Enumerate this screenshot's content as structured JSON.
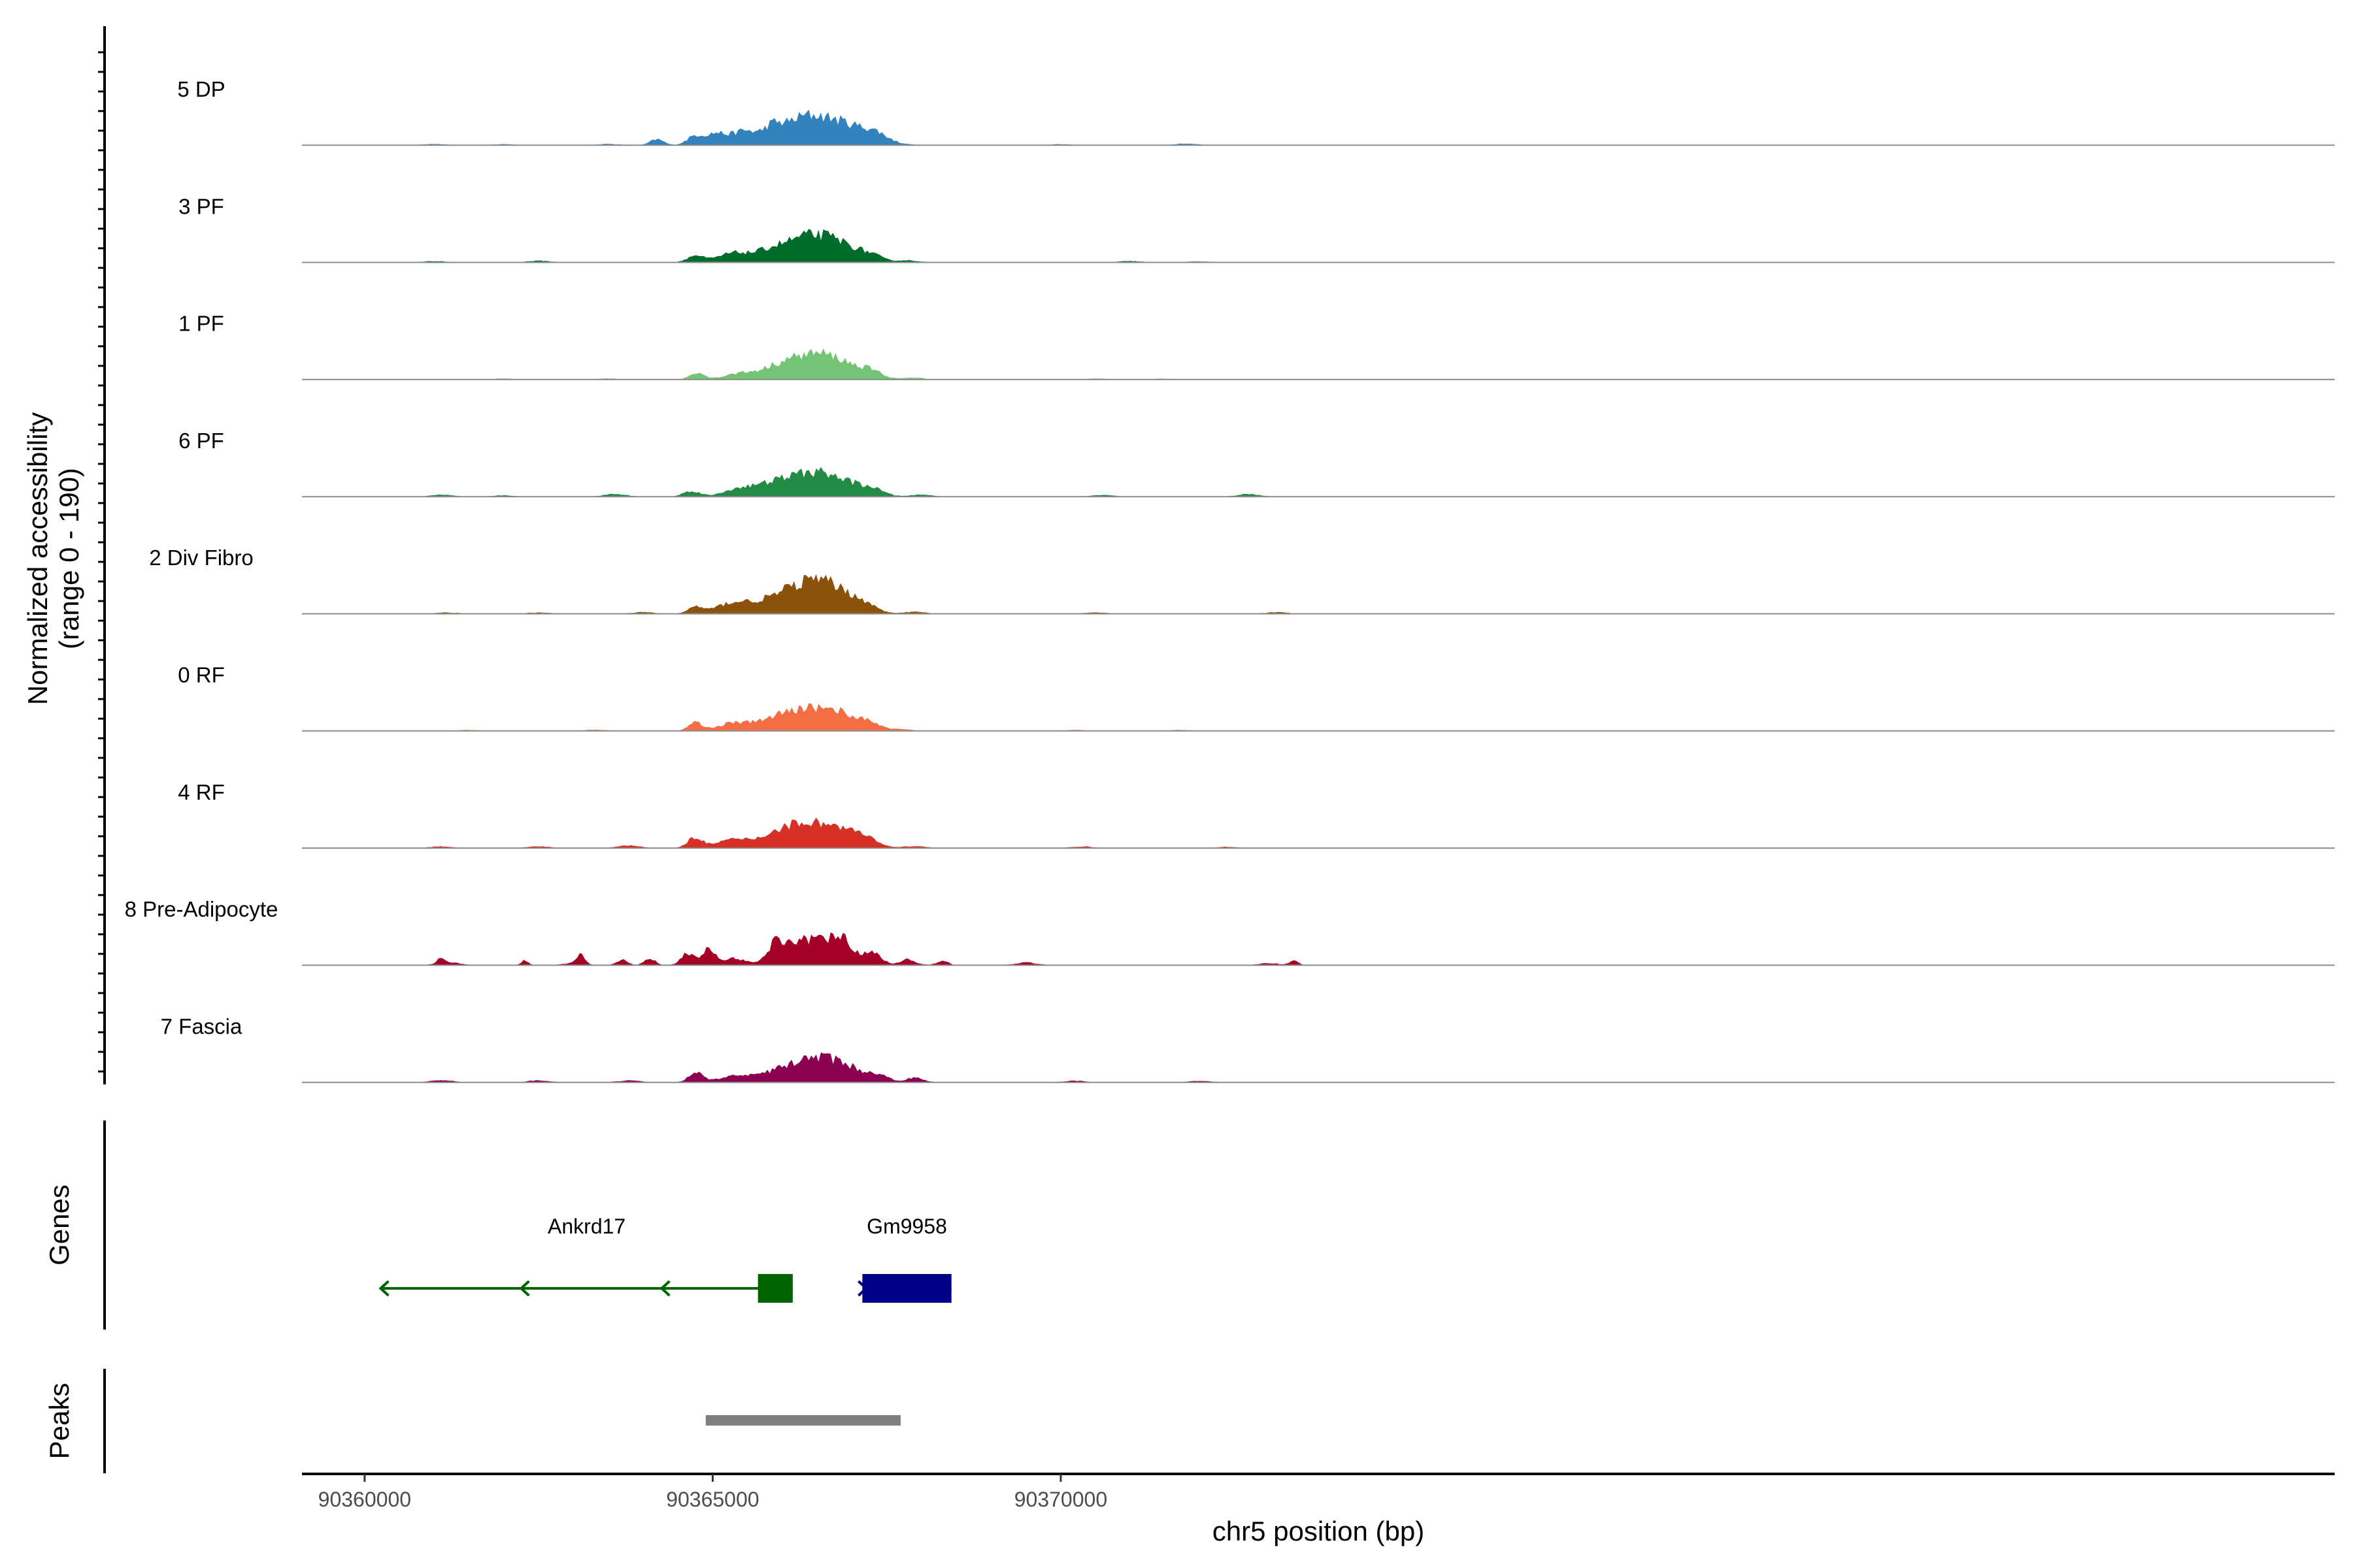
{
  "chart_data": {
    "type": "area",
    "title": "",
    "ylabel_line1": "Normalized accessibility",
    "ylabel_line2": "(range 0 - 190)",
    "y_range": [
      0,
      190
    ],
    "xlabel": "chr5 position (bp)",
    "x_range": [
      90359100,
      90388300
    ],
    "x_ticks": [
      {
        "value": 90360000,
        "label": "90360000"
      },
      {
        "value": 90365000,
        "label": "90365000"
      },
      {
        "value": 90370000,
        "label": "90370000"
      }
    ],
    "genes_label": "Genes",
    "peaks_label": "Peaks",
    "series": [
      {
        "name": "5 DP",
        "color": "#3182BD",
        "baseline": [
          [
            90361000,
            2
          ],
          [
            90362000,
            1.5
          ],
          [
            90363500,
            2
          ],
          [
            90370000,
            1.5
          ],
          [
            90371800,
            2.5
          ]
        ],
        "peaks": [
          [
            90364200,
            90,
            10
          ],
          [
            90364750,
            140,
            12
          ],
          [
            90365050,
            170,
            14
          ],
          [
            90365450,
            210,
            18
          ],
          [
            90365850,
            160,
            12
          ],
          [
            90366250,
            330,
            32
          ],
          [
            90366850,
            320,
            40
          ],
          [
            90367350,
            80,
            16
          ]
        ]
      },
      {
        "name": "3 PF",
        "color": "#006D2C",
        "baseline": [
          [
            90361000,
            2
          ],
          [
            90362500,
            2.5
          ],
          [
            90367800,
            3
          ],
          [
            90371000,
            2
          ],
          [
            90372000,
            1.5
          ]
        ],
        "peaks": [
          [
            90364750,
            100,
            12
          ],
          [
            90365300,
            140,
            22
          ],
          [
            90365800,
            110,
            22
          ],
          [
            90366250,
            290,
            32
          ],
          [
            90366500,
            90,
            24
          ],
          [
            90366850,
            250,
            30
          ],
          [
            90367300,
            60,
            14
          ]
        ]
      },
      {
        "name": "1 PF",
        "color": "#74C476",
        "baseline": [
          [
            90362000,
            1.5
          ],
          [
            90363500,
            1.5
          ],
          [
            90367900,
            2.5
          ],
          [
            90370500,
            1.5
          ],
          [
            90371500,
            1.5
          ]
        ],
        "peaks": [
          [
            90364780,
            100,
            11
          ],
          [
            90365400,
            90,
            22
          ],
          [
            90365900,
            80,
            22
          ],
          [
            90366250,
            260,
            34
          ],
          [
            90366500,
            80,
            24
          ],
          [
            90366850,
            230,
            32
          ],
          [
            90367300,
            70,
            14
          ]
        ]
      },
      {
        "name": "6 PF",
        "color": "#238B45",
        "baseline": [
          [
            90361100,
            3
          ],
          [
            90362000,
            2
          ],
          [
            90363600,
            4
          ],
          [
            90368000,
            3
          ],
          [
            90370600,
            2.5
          ],
          [
            90372700,
            4
          ]
        ],
        "peaks": [
          [
            90364700,
            90,
            12
          ],
          [
            90365400,
            130,
            22
          ],
          [
            90365850,
            110,
            22
          ],
          [
            90366250,
            250,
            32
          ],
          [
            90366500,
            80,
            24
          ],
          [
            90366850,
            210,
            32
          ],
          [
            90367300,
            70,
            16
          ]
        ]
      },
      {
        "name": "2 Div Fibro",
        "color": "#8C510A",
        "baseline": [
          [
            90361200,
            2
          ],
          [
            90362500,
            2
          ],
          [
            90364000,
            2.5
          ],
          [
            90367900,
            3
          ],
          [
            90370500,
            2
          ],
          [
            90373100,
            2.5
          ]
        ],
        "peaks": [
          [
            90364750,
            100,
            11
          ],
          [
            90365300,
            170,
            24
          ],
          [
            90365800,
            130,
            24
          ],
          [
            90366250,
            330,
            30
          ],
          [
            90366500,
            110,
            26
          ],
          [
            90366800,
            300,
            30
          ],
          [
            90367200,
            70,
            16
          ]
        ]
      },
      {
        "name": "0 RF",
        "color": "#F46D43",
        "baseline": [
          [
            90361500,
            1.5
          ],
          [
            90363300,
            2
          ],
          [
            90367700,
            2.5
          ],
          [
            90370200,
            1.5
          ],
          [
            90371700,
            1.5
          ]
        ],
        "peaks": [
          [
            90364750,
            130,
            10
          ],
          [
            90365300,
            120,
            22
          ],
          [
            90365800,
            110,
            22
          ],
          [
            90366250,
            270,
            30
          ],
          [
            90366500,
            60,
            22
          ],
          [
            90366850,
            250,
            28
          ],
          [
            90367300,
            70,
            14
          ]
        ]
      },
      {
        "name": "4 RF",
        "color": "#D73027",
        "baseline": [
          [
            90361100,
            2.5
          ],
          [
            90362500,
            3
          ],
          [
            90363800,
            4
          ],
          [
            90367900,
            3
          ],
          [
            90370300,
            2.5
          ],
          [
            90372400,
            2
          ]
        ],
        "peaks": [
          [
            90364750,
            170,
            11
          ],
          [
            90365300,
            130,
            22
          ],
          [
            90365800,
            90,
            22
          ],
          [
            90366200,
            300,
            30
          ],
          [
            90366500,
            90,
            24
          ],
          [
            90366850,
            250,
            30
          ],
          [
            90367200,
            70,
            16
          ]
        ]
      },
      {
        "name": "8 Pre-Adipocyte",
        "color": "#A50026",
        "baseline": [
          [
            90361200,
            5
          ],
          [
            90363000,
            3
          ],
          [
            90367800,
            4
          ],
          [
            90369500,
            4
          ],
          [
            90373000,
            3
          ]
        ],
        "peaks": [
          [
            90361100,
            90,
            5
          ],
          [
            90362300,
            80,
            5
          ],
          [
            90363100,
            130,
            6
          ],
          [
            90363700,
            80,
            8
          ],
          [
            90364100,
            100,
            8
          ],
          [
            90364650,
            190,
            10
          ],
          [
            90364950,
            240,
            9
          ],
          [
            90365300,
            110,
            16
          ],
          [
            90365900,
            240,
            12
          ],
          [
            90366250,
            350,
            26
          ],
          [
            90366600,
            150,
            22
          ],
          [
            90366850,
            390,
            16
          ],
          [
            90367300,
            200,
            12
          ],
          [
            90367800,
            60,
            8
          ],
          [
            90368300,
            70,
            8
          ],
          [
            90373350,
            70,
            6
          ]
        ]
      },
      {
        "name": "7 Fascia",
        "color": "#8C0051",
        "baseline": [
          [
            90361100,
            3.5
          ],
          [
            90362500,
            3
          ],
          [
            90363800,
            3
          ],
          [
            90367900,
            3
          ],
          [
            90370200,
            2.5
          ],
          [
            90372000,
            2.5
          ]
        ],
        "peaks": [
          [
            90364750,
            150,
            10
          ],
          [
            90365300,
            90,
            24
          ],
          [
            90365800,
            80,
            22
          ],
          [
            90366250,
            240,
            30
          ],
          [
            90366500,
            80,
            22
          ],
          [
            90366850,
            260,
            32
          ],
          [
            90367400,
            60,
            14
          ],
          [
            90367900,
            40,
            10
          ]
        ]
      }
    ],
    "genes": [
      {
        "name": "Ankrd17",
        "start": 90360230,
        "end": 90366150,
        "strand": "-",
        "exon_start": 90365650,
        "exon_end": 90366150,
        "color": "#006400"
      },
      {
        "name": "Gm9958",
        "start": 90367150,
        "end": 90368430,
        "strand": "+",
        "exon_start": 90367150,
        "exon_end": 90368430,
        "color": "#00008B"
      }
    ],
    "peaks": [
      {
        "start": 90364900,
        "end": 90367700,
        "color": "#7F7F7F"
      }
    ]
  }
}
